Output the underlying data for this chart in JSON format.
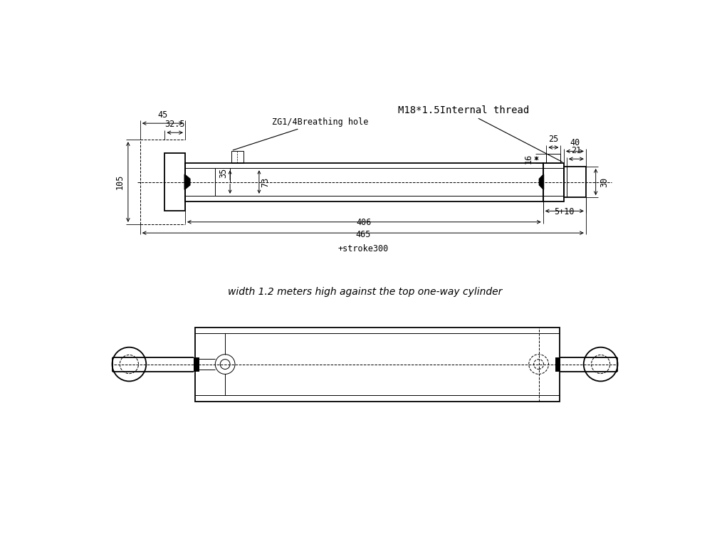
{
  "bg_color": "#ffffff",
  "line_color": "#000000",
  "title_text": "width 1.2 meters high against the top one-way cylinder",
  "label_45": "45",
  "label_32_5": "32.5",
  "label_105": "105",
  "label_35": "35",
  "label_73": "73",
  "label_25": "25",
  "label_16": "16",
  "label_40": "40",
  "label_21": "21",
  "label_30": "30",
  "label_5_10": "5+10",
  "label_406": "406",
  "label_465": "465",
  "label_stroke": "+stroke300",
  "label_breathing": "ZG1/4Breathing hole",
  "label_thread": "M18*1.5Internal thread",
  "font_size_dim": 8.5,
  "font_size_title": 10,
  "font_size_thread": 10
}
